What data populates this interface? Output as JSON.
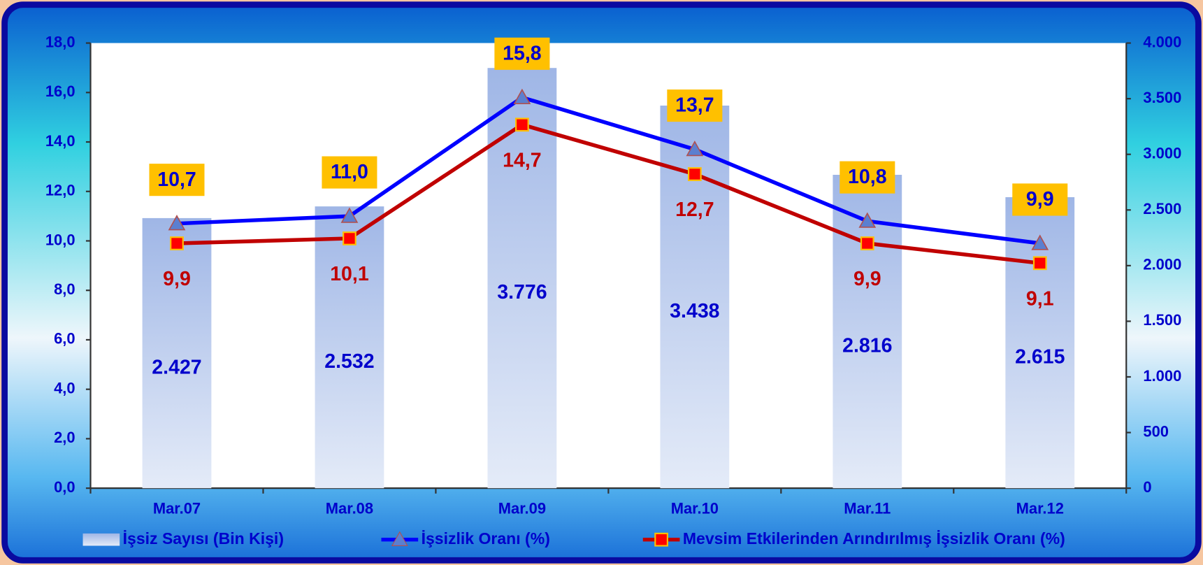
{
  "chart_data": {
    "type": "combo",
    "categories": [
      "Mar.07",
      "Mar.08",
      "Mar.09",
      "Mar.10",
      "Mar.11",
      "Mar.12"
    ],
    "series": [
      {
        "name": "İşsiz Sayısı (Bin Kişi)",
        "type": "bar",
        "axis": "y2",
        "color": "#a3bbea",
        "values": [
          2427,
          2532,
          3776,
          3438,
          2816,
          2615
        ],
        "value_labels": [
          "2.427",
          "2.532",
          "3.776",
          "3.438",
          "2.816",
          "2.615"
        ]
      },
      {
        "name": "İşsizlik Oranı (%)",
        "type": "line",
        "color": "#0000ff",
        "values": [
          10.7,
          11.0,
          15.8,
          13.7,
          10.8,
          9.9
        ],
        "value_labels": [
          "10,7",
          "11,0",
          "15,8",
          "13,7",
          "10,8",
          "9,9"
        ]
      },
      {
        "name": "Mevsim Etkilerinden Arındırılmış İşsizlik Oranı (%)",
        "type": "line",
        "color": "#c00000",
        "values": [
          9.9,
          10.1,
          14.7,
          12.7,
          9.9,
          9.1
        ],
        "value_labels": [
          "9,9",
          "10,1",
          "14,7",
          "12,7",
          "9,9",
          "9,1"
        ]
      }
    ],
    "ylim": [
      0,
      18
    ],
    "yticks": [
      {
        "value": 0,
        "label": "0,0"
      },
      {
        "value": 2,
        "label": "2,0"
      },
      {
        "value": 4,
        "label": "4,0"
      },
      {
        "value": 6,
        "label": "6,0"
      },
      {
        "value": 8,
        "label": "8,0"
      },
      {
        "value": 10,
        "label": "10,0"
      },
      {
        "value": 12,
        "label": "12,0"
      },
      {
        "value": 14,
        "label": "14,0"
      },
      {
        "value": 16,
        "label": "16,0"
      },
      {
        "value": 18,
        "label": "18,0"
      }
    ],
    "y2lim": [
      0,
      4000
    ],
    "y2ticks": [
      0,
      500,
      {
        "value": 1000,
        "label": "1.000"
      },
      {
        "value": 1500,
        "label": "1.500"
      },
      {
        "value": 2000,
        "label": "2.000"
      },
      {
        "value": 2500,
        "label": "2.500"
      },
      {
        "value": 3000,
        "label": "3.000"
      },
      {
        "value": 3500,
        "label": "3.500"
      },
      {
        "value": 4000,
        "label": "4.000"
      }
    ],
    "legend": "bottom"
  }
}
